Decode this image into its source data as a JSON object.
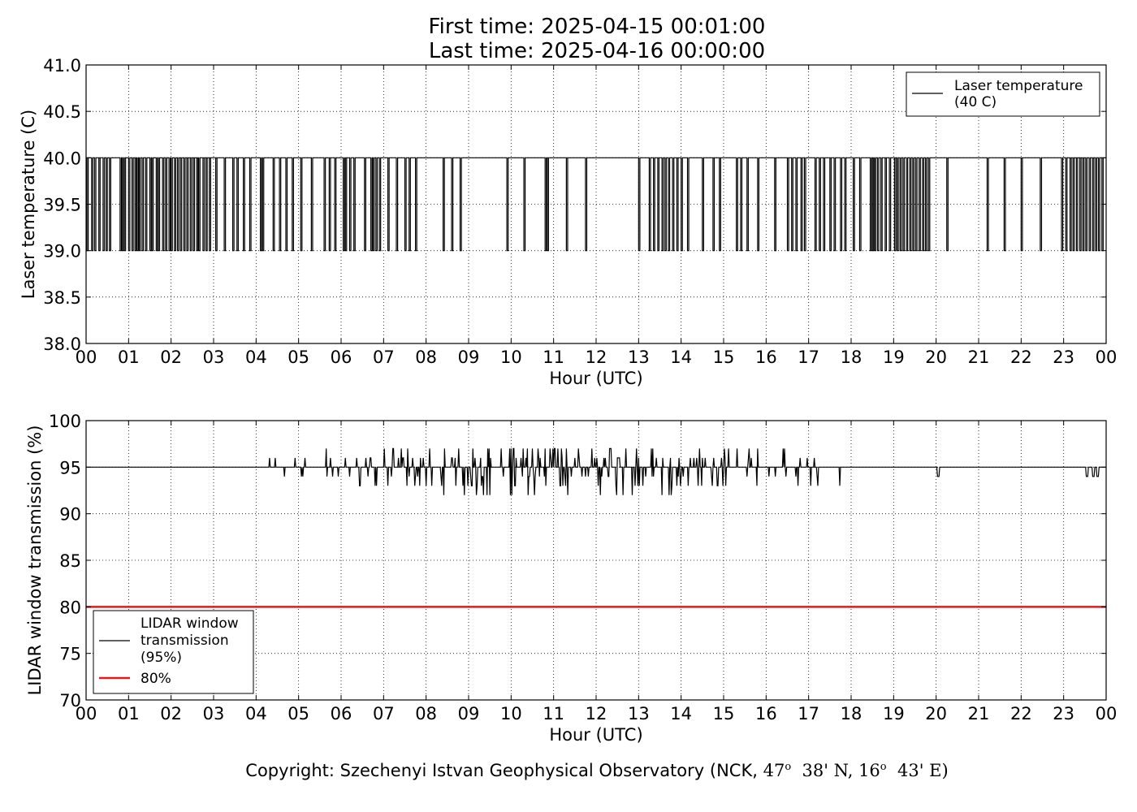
{
  "header": {
    "first_time": "First time: 2025-04-15 00:01:00",
    "last_time": "Last time: 2025-04-16 00:00:00"
  },
  "copyright": {
    "prefix": "Copyright: Szechenyi Istvan Geophysical Observatory (NCK, ",
    "lat_deg": "47",
    "lat_min": "38' N, ",
    "lon_deg": "16",
    "lon_min": "43' E)",
    "degree_sign": "o"
  },
  "chart_data": [
    {
      "type": "line",
      "ylabel": "Laser temperature (C)",
      "xlabel": "Hour (UTC)",
      "ylim": [
        38.0,
        41.0
      ],
      "yticks": [
        "38.0",
        "38.5",
        "39.0",
        "39.5",
        "40.0",
        "40.5",
        "41.0"
      ],
      "xlim": [
        0,
        24
      ],
      "xticks": [
        "00",
        "01",
        "02",
        "03",
        "04",
        "05",
        "06",
        "07",
        "08",
        "09",
        "10",
        "11",
        "12",
        "13",
        "14",
        "15",
        "16",
        "17",
        "18",
        "19",
        "20",
        "21",
        "22",
        "23",
        "00"
      ],
      "grid": true,
      "legend_position": "top-right",
      "series": [
        {
          "name": "Laser temperature\n(40 C)",
          "color": "#000000",
          "baseline": 40.0,
          "dip_value": 39.0,
          "dips_hours": [
            0.02,
            0.13,
            0.2,
            0.3,
            0.4,
            0.47,
            0.55,
            0.8,
            0.85,
            0.9,
            1.0,
            1.08,
            1.15,
            1.2,
            1.25,
            1.32,
            1.4,
            1.5,
            1.55,
            1.65,
            1.7,
            1.8,
            1.87,
            1.95,
            2.0,
            2.08,
            2.15,
            2.22,
            2.3,
            2.37,
            2.45,
            2.52,
            2.6,
            2.65,
            2.75,
            2.82,
            2.9,
            3.05,
            3.25,
            3.45,
            3.55,
            3.7,
            3.85,
            4.1,
            4.15,
            4.4,
            4.55,
            4.7,
            4.85,
            5.05,
            5.3,
            5.6,
            5.72,
            5.85,
            6.05,
            6.1,
            6.2,
            6.3,
            6.55,
            6.7,
            6.75,
            6.82,
            6.9,
            7.1,
            7.3,
            7.5,
            7.6,
            7.75,
            8.4,
            8.6,
            8.8,
            9.9,
            10.3,
            10.8,
            10.85,
            11.3,
            11.75,
            13.0,
            13.25,
            13.35,
            13.45,
            13.55,
            13.62,
            13.7,
            13.8,
            13.9,
            14.0,
            14.15,
            14.5,
            14.75,
            14.9,
            15.3,
            15.4,
            15.55,
            15.8,
            16.2,
            16.5,
            16.6,
            16.7,
            16.82,
            16.9,
            17.15,
            17.25,
            17.35,
            17.5,
            17.6,
            17.75,
            17.85,
            18.05,
            18.2,
            18.45,
            18.5,
            18.55,
            18.62,
            18.7,
            18.8,
            18.9,
            19.02,
            19.08,
            19.15,
            19.22,
            19.3,
            19.38,
            19.45,
            19.52,
            19.6,
            19.68,
            19.75,
            19.82,
            20.25,
            21.2,
            21.6,
            22.0,
            22.45,
            22.95,
            23.05,
            23.15,
            23.22,
            23.3,
            23.38,
            23.45,
            23.52,
            23.6,
            23.68,
            23.75,
            23.82,
            23.9
          ],
          "dip_duration_hours": 0.03
        }
      ]
    },
    {
      "type": "line",
      "ylabel": "LIDAR window transmission (%)",
      "xlabel": "Hour (UTC)",
      "ylim": [
        70,
        100
      ],
      "yticks": [
        "70",
        "75",
        "80",
        "85",
        "90",
        "95",
        "100"
      ],
      "xlim": [
        0,
        24
      ],
      "xticks": [
        "00",
        "01",
        "02",
        "03",
        "04",
        "05",
        "06",
        "07",
        "08",
        "09",
        "10",
        "11",
        "12",
        "13",
        "14",
        "15",
        "16",
        "17",
        "18",
        "19",
        "20",
        "21",
        "22",
        "23",
        "00"
      ],
      "grid": true,
      "legend_position": "bottom-left",
      "series": [
        {
          "name": "LIDAR window\ntransmission\n(95%)",
          "color": "#000000",
          "baseline": 95,
          "noisy_range_hours": [
            4.2,
            17.8
          ],
          "min_value": 91,
          "max_value": 97,
          "extra_dips_hours": [
            20.05,
            23.55,
            23.7,
            23.8
          ]
        },
        {
          "name": "80%",
          "color": "#e31a1c",
          "constant": 80
        }
      ]
    }
  ]
}
